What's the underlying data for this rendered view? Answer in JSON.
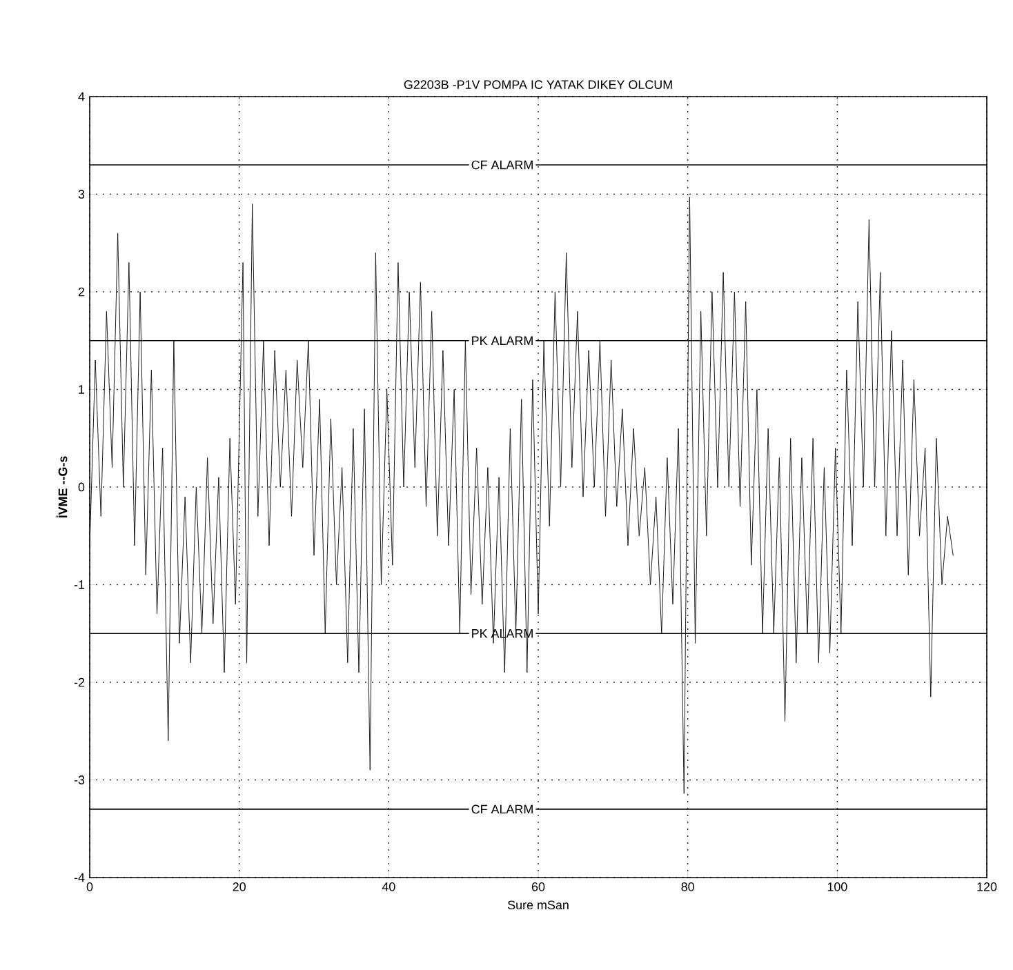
{
  "chart_data": {
    "type": "line",
    "title": "G2203B    -P1V   POMPA IC YATAK DIKEY OLCUM",
    "xlabel": "Sure   mSan",
    "ylabel": "İVME --G-s",
    "xlim": [
      0,
      120
    ],
    "ylim": [
      -4,
      4
    ],
    "xticks": [
      0,
      20,
      40,
      60,
      80,
      100,
      120
    ],
    "yticks": [
      -4,
      -3,
      -2,
      -1,
      0,
      1,
      2,
      3,
      4
    ],
    "grid": true,
    "line_style": "solid",
    "ref_lines": [
      {
        "axis": "y",
        "value": 3.3,
        "label": "CF ALARM"
      },
      {
        "axis": "y",
        "value": 1.5,
        "label": "PK ALARM"
      },
      {
        "axis": "y",
        "value": -1.5,
        "label": "PK ALARM"
      },
      {
        "axis": "y",
        "value": -3.3,
        "label": "CF ALARM"
      }
    ],
    "series": [
      {
        "color": "#1a1a1a",
        "x": [
          0,
          0.75,
          1.5,
          2.25,
          3,
          3.75,
          4.5,
          5.25,
          6,
          6.75,
          7.5,
          8.25,
          9,
          9.75,
          10.5,
          11.25,
          12,
          12.75,
          13.5,
          14.25,
          15,
          15.75,
          16.5,
          17.25,
          18,
          18.75,
          19.5,
          20.5,
          21,
          21.75,
          22.5,
          23.25,
          24,
          24.75,
          25.5,
          26.25,
          27,
          27.75,
          28.5,
          29.25,
          30,
          30.75,
          31.5,
          32.25,
          33,
          33.75,
          34.5,
          35.25,
          36,
          36.75,
          37.5,
          38.25,
          39,
          39.75,
          40.5,
          41.25,
          42,
          42.75,
          43.5,
          44.25,
          45,
          45.75,
          46.5,
          47.25,
          48,
          48.75,
          49.5,
          50.25,
          51,
          51.75,
          52.5,
          53.25,
          54,
          54.75,
          55.5,
          56.25,
          57,
          57.75,
          58.5,
          59.25,
          60,
          60.75,
          61.5,
          62.25,
          63,
          63.75,
          64.5,
          65.25,
          66,
          66.75,
          67.5,
          68.25,
          69,
          69.75,
          70.5,
          71.25,
          72,
          72.75,
          73.5,
          74.25,
          75,
          75.75,
          76.5,
          77.25,
          78,
          78.75,
          79.5,
          80.25,
          81,
          81.75,
          82.5,
          83.25,
          84,
          84.75,
          85.5,
          86.25,
          87,
          87.75,
          88.5,
          89.25,
          90,
          90.75,
          91.5,
          92.25,
          93,
          93.75,
          94.5,
          95.25,
          96,
          96.75,
          97.5,
          98.25,
          99,
          99.75,
          100.5,
          101.25,
          102,
          102.75,
          103.5,
          104.25,
          105,
          105.75,
          106.5,
          107.25,
          108,
          108.75,
          109.5,
          110.25,
          111,
          111.75,
          112.5,
          113.25,
          114,
          114.75,
          115.5
        ],
        "values": [
          -0.6,
          1.3,
          -0.3,
          1.8,
          0.2,
          2.6,
          0.0,
          2.3,
          -0.6,
          2.0,
          -0.9,
          1.2,
          -1.3,
          0.4,
          -2.6,
          1.5,
          -1.6,
          -0.1,
          -1.8,
          0.0,
          -1.5,
          0.3,
          -1.4,
          0.1,
          -1.9,
          0.5,
          -1.2,
          2.3,
          -1.8,
          2.9,
          -0.3,
          1.5,
          -0.6,
          1.4,
          0.0,
          1.2,
          -0.3,
          1.3,
          0.2,
          1.5,
          -0.7,
          0.9,
          -1.5,
          0.7,
          -1.0,
          0.2,
          -1.8,
          0.6,
          -1.9,
          0.8,
          -2.9,
          2.4,
          -1.0,
          1.0,
          -0.8,
          2.3,
          0.0,
          2.0,
          0.2,
          2.1,
          -0.2,
          1.8,
          -0.5,
          1.4,
          -0.6,
          1.0,
          -1.5,
          1.5,
          -1.1,
          0.4,
          -1.2,
          0.2,
          -1.6,
          0.1,
          -1.9,
          0.6,
          -1.5,
          0.9,
          -1.9,
          1.1,
          -1.3,
          1.5,
          -0.4,
          2.0,
          0.0,
          2.4,
          0.2,
          1.8,
          -0.1,
          1.4,
          0.0,
          1.5,
          -0.3,
          1.3,
          -0.2,
          0.8,
          -0.6,
          0.6,
          -0.5,
          0.2,
          -1.0,
          -0.1,
          -1.5,
          0.3,
          -1.2,
          0.6,
          -3.14,
          2.97,
          -1.6,
          1.8,
          -0.5,
          2.0,
          0.0,
          2.2,
          0.0,
          2.0,
          -0.2,
          1.9,
          -0.8,
          1.0,
          -1.5,
          0.6,
          -1.5,
          0.3,
          -2.4,
          0.5,
          -1.8,
          0.3,
          -1.5,
          0.5,
          -1.8,
          0.2,
          -1.7,
          0.4,
          -1.5,
          1.2,
          -0.6,
          1.9,
          0.0,
          2.74,
          0.0,
          2.2,
          -0.5,
          1.6,
          -0.5,
          1.3,
          -0.9,
          1.1,
          -0.5,
          0.4,
          -2.15,
          0.5,
          -1.0,
          -0.3,
          -0.7
        ]
      }
    ]
  }
}
